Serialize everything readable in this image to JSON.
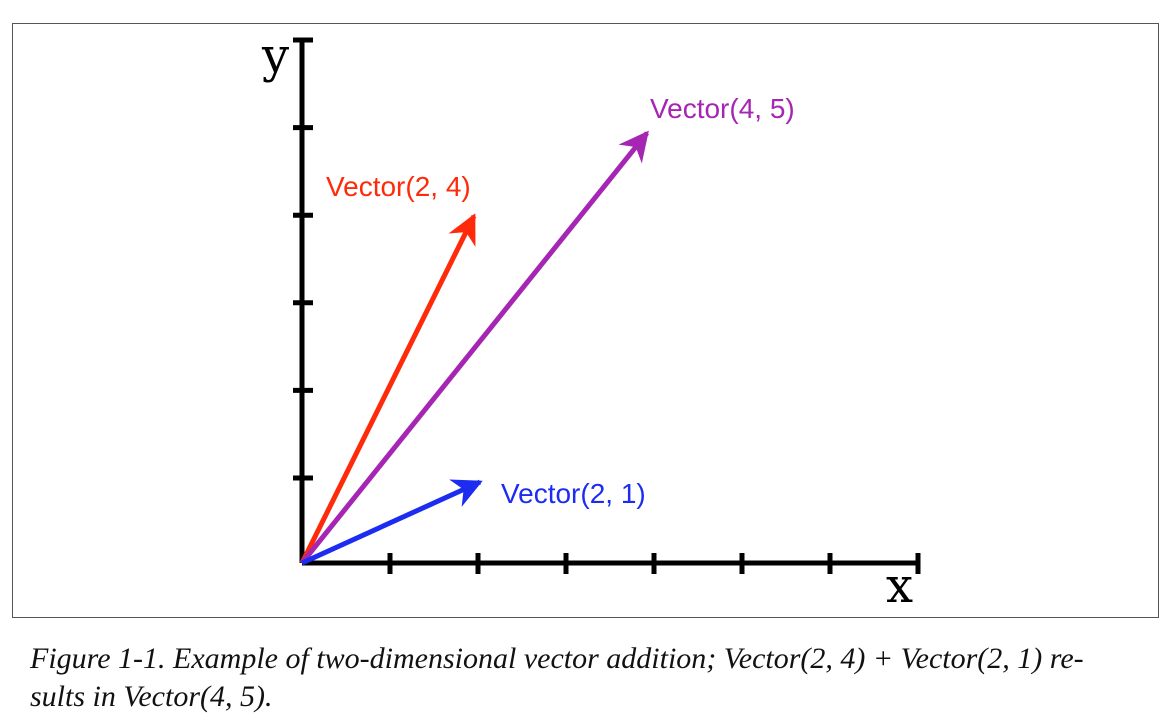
{
  "diagram": {
    "axes": {
      "x_label": "x",
      "y_label": "y",
      "x_ticks": 7,
      "y_ticks": 6
    },
    "vectors": [
      {
        "id": "vector-2-4",
        "label": "Vector(2, 4)",
        "dx": 2,
        "dy": 4,
        "color": "#ff2a0a"
      },
      {
        "id": "vector-4-5",
        "label": "Vector(4, 5)",
        "dx": 4,
        "dy": 5,
        "color": "#a626b4"
      },
      {
        "id": "vector-2-1",
        "label": "Vector(2, 1)",
        "dx": 2,
        "dy": 1,
        "color": "#1c2cf0"
      }
    ]
  },
  "caption": {
    "line1": "Figure 1-1. Example of two-dimensional vector addition; Vector(2, 4) + Vector(2, 1) re-",
    "line2": "sults in Vector(4, 5)."
  }
}
